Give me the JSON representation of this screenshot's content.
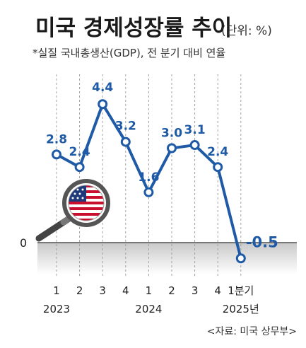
{
  "header": {
    "title": "미국 경제성장률 추이",
    "unit": "(단위: %)",
    "subtitle": "*실질 국내총생산(GDP), 전 분기 대비 연율"
  },
  "chart_data": {
    "type": "line",
    "categories": [
      "1",
      "2",
      "3",
      "4",
      "1",
      "2",
      "3",
      "4",
      "1분기"
    ],
    "year_labels": [
      "2023",
      "2024",
      "2025년"
    ],
    "values": [
      2.8,
      2.4,
      4.4,
      3.2,
      1.6,
      3.0,
      3.1,
      2.4,
      -0.5
    ],
    "data_labels": [
      "2.8",
      "2.4",
      "4.4",
      "3.2",
      "1.6",
      "3.0",
      "3.1",
      "2.4",
      "-0.5"
    ],
    "zero_label": "0",
    "ylim": [
      -1.2,
      5.4
    ],
    "grid": "vertical dashed",
    "line_color": "#1f5aa6"
  },
  "icon": {
    "name": "us-flag-magnifier-icon"
  },
  "footer": {
    "source": "<자료: 미국 상무부>"
  }
}
